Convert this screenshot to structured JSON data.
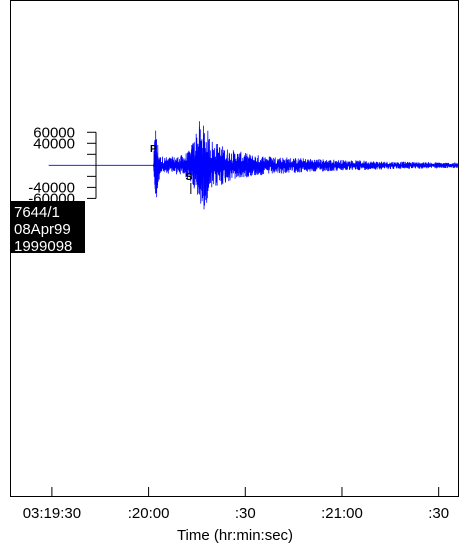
{
  "chart_data": {
    "type": "line",
    "title": "",
    "xlabel": "Time (hr:min:sec)",
    "ylabel": "",
    "x_ticks": [
      "03:19:30",
      ":20:00",
      ":30",
      ":21:00",
      ":30"
    ],
    "x_tick_seconds": [
      0,
      30,
      60,
      90,
      120
    ],
    "xlim_seconds": [
      -13,
      126
    ],
    "y_ticks": [
      60000,
      40000,
      20000,
      -20000,
      -40000,
      -60000
    ],
    "y_tick_labels": [
      "60000",
      "40000",
      "",
      "",
      "-40000",
      "-60000"
    ],
    "ylim": [
      -600000,
      300000
    ],
    "station_labels": [
      "7644/1",
      "08Apr99",
      "1999098"
    ],
    "phases": [
      {
        "label": "P",
        "t": 31.8
      },
      {
        "label": "S",
        "t": 42.8
      }
    ],
    "series": [
      {
        "color": "#0000ff",
        "envelope": [
          {
            "t": -1.0,
            "amp": 0
          },
          {
            "t": 31.5,
            "amp": 0
          },
          {
            "t": 31.8,
            "amp": 45000
          },
          {
            "t": 32.1,
            "amp": 70000
          },
          {
            "t": 32.6,
            "amp": 55000
          },
          {
            "t": 33.5,
            "amp": 18000
          },
          {
            "t": 36.0,
            "amp": 15000
          },
          {
            "t": 40.0,
            "amp": 18000
          },
          {
            "t": 42.8,
            "amp": 28000
          },
          {
            "t": 45.0,
            "amp": 70000
          },
          {
            "t": 47.5,
            "amp": 75000
          },
          {
            "t": 50.0,
            "amp": 45000
          },
          {
            "t": 55.0,
            "amp": 30000
          },
          {
            "t": 62.0,
            "amp": 20000
          },
          {
            "t": 75.0,
            "amp": 14000
          },
          {
            "t": 90.0,
            "amp": 10000
          },
          {
            "t": 105.0,
            "amp": 7000
          },
          {
            "t": 126.0,
            "amp": 5000
          }
        ],
        "peaks": [
          {
            "t": 32.2,
            "v": 63000
          },
          {
            "t": 32.5,
            "v": -58000
          },
          {
            "t": 45.8,
            "v": 80000
          },
          {
            "t": 47.2,
            "v": -80000
          },
          {
            "t": 46.6,
            "v": -65000
          }
        ]
      }
    ]
  }
}
